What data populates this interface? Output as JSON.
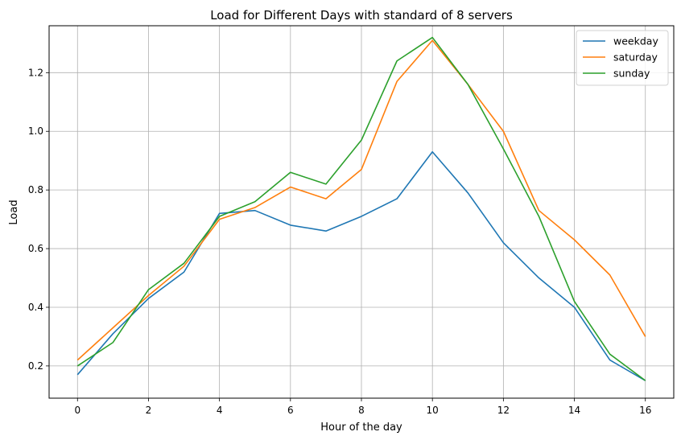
{
  "chart_data": {
    "type": "line",
    "title": "Load for Different Days with standard of 8 servers",
    "xlabel": "Hour of the day",
    "ylabel": "Load",
    "x": [
      0,
      1,
      2,
      3,
      4,
      5,
      6,
      7,
      8,
      9,
      10,
      11,
      12,
      13,
      14,
      15,
      16
    ],
    "xlim": [
      -0.8,
      16.8
    ],
    "ylim": [
      0.09,
      1.36
    ],
    "x_ticks": [
      0,
      2,
      4,
      6,
      8,
      10,
      12,
      14,
      16
    ],
    "y_ticks": [
      0.2,
      0.4,
      0.6,
      0.8,
      1.0,
      1.2
    ],
    "grid": true,
    "legend_position": "top-right",
    "series": [
      {
        "name": "weekday",
        "color": "#1f77b4",
        "values": [
          0.17,
          0.31,
          0.43,
          0.52,
          0.72,
          0.73,
          0.68,
          0.66,
          0.71,
          0.77,
          0.93,
          0.79,
          0.62,
          0.5,
          0.4,
          0.22,
          0.15
        ]
      },
      {
        "name": "saturday",
        "color": "#ff7f0e",
        "values": [
          0.22,
          0.33,
          0.44,
          0.54,
          0.7,
          0.74,
          0.81,
          0.77,
          0.87,
          1.17,
          1.31,
          1.16,
          1.0,
          0.73,
          0.63,
          0.51,
          0.3
        ]
      },
      {
        "name": "sunday",
        "color": "#2ca02c",
        "values": [
          0.2,
          0.28,
          0.46,
          0.55,
          0.71,
          0.76,
          0.86,
          0.82,
          0.97,
          1.24,
          1.32,
          1.16,
          0.94,
          0.71,
          0.42,
          0.24,
          0.15
        ]
      }
    ]
  }
}
